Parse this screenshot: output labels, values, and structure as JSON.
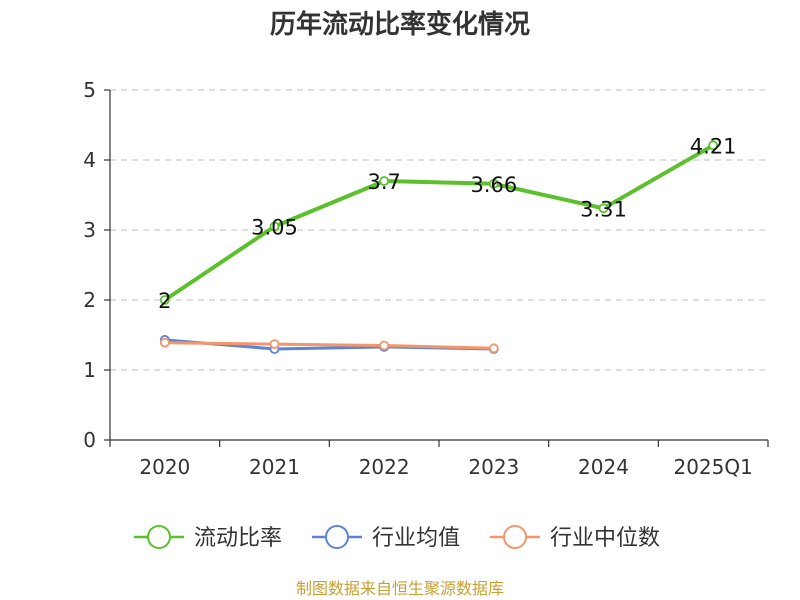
{
  "chart_data": {
    "type": "line",
    "title": "历年流动比率变化情况",
    "categories": [
      "2020",
      "2021",
      "2022",
      "2023",
      "2024",
      "2025Q1"
    ],
    "ylim": [
      0,
      5
    ],
    "yticks": [
      "0",
      "1",
      "2",
      "3",
      "4",
      "5"
    ],
    "grid": true,
    "legend_position": "bottom",
    "series": [
      {
        "name": "流动比率",
        "color": "#5cc02c",
        "values": [
          2,
          3.05,
          3.7,
          3.66,
          3.31,
          4.21
        ],
        "labels": [
          "2",
          "3.05",
          "3.7",
          "3.66",
          "3.31",
          "4.21"
        ]
      },
      {
        "name": "行业均值",
        "color": "#5b84d6",
        "values": [
          1.43,
          1.3,
          1.33,
          1.3,
          null,
          null
        ]
      },
      {
        "name": "行业中位数",
        "color": "#f4956a",
        "values": [
          1.39,
          1.37,
          1.35,
          1.31,
          null,
          null
        ]
      }
    ]
  },
  "footer": {
    "source": "制图数据来自恒生聚源数据库"
  }
}
